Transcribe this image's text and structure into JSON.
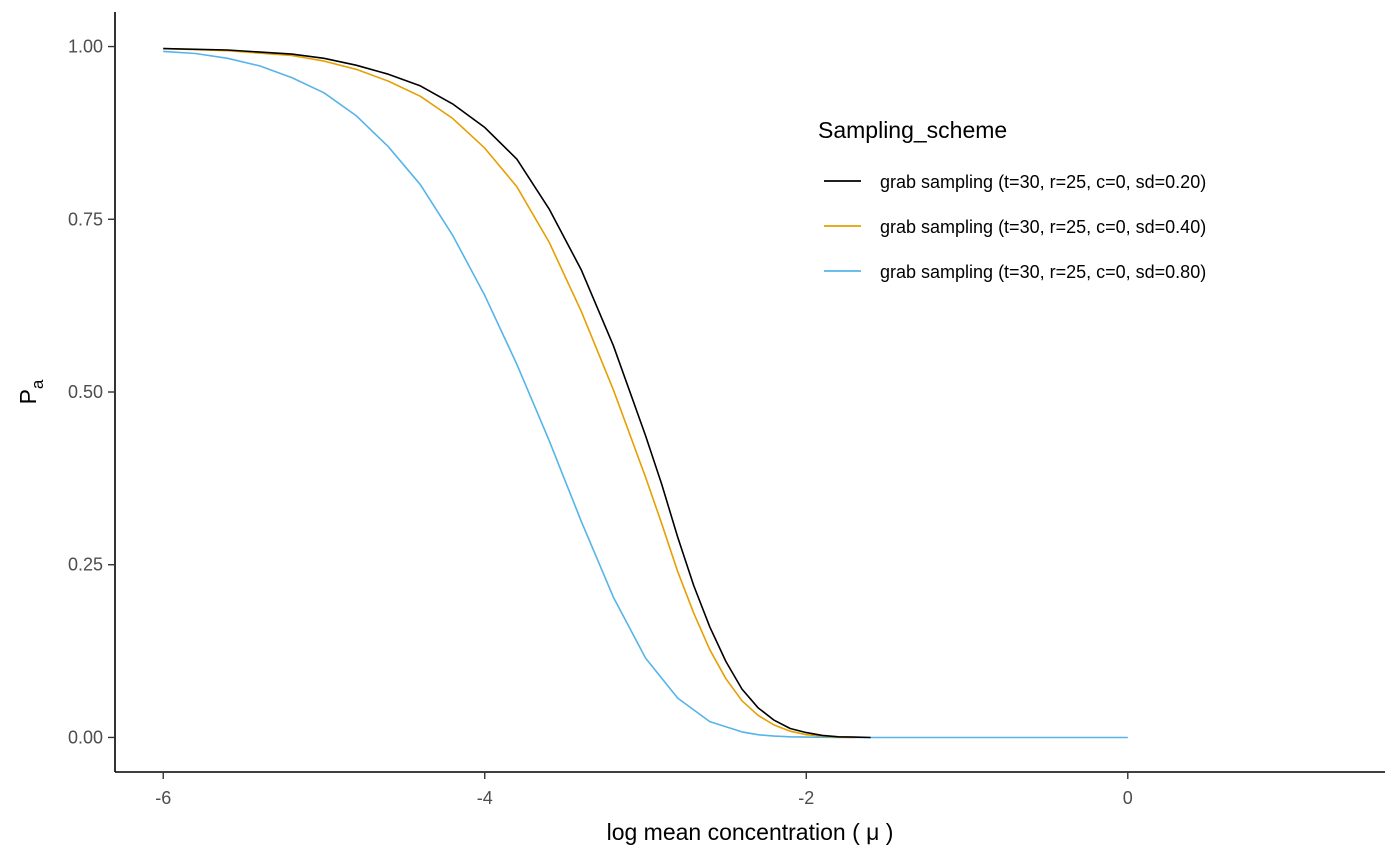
{
  "chart_data": {
    "type": "line",
    "title": "",
    "xlabel": "log mean concentration  ( μ )",
    "ylabel_main": "P",
    "ylabel_sub": "a",
    "xlim": [
      -6.3,
      1.6
    ],
    "ylim": [
      -0.05,
      1.05
    ],
    "x_ticks": [
      -6,
      -4,
      -2,
      0
    ],
    "x_tick_labels": [
      "-6",
      "-4",
      "-2",
      "0"
    ],
    "y_ticks": [
      0,
      0.25,
      0.5,
      0.75,
      1
    ],
    "y_tick_labels": [
      "0.00",
      "0.25",
      "0.50",
      "0.75",
      "1.00"
    ],
    "grid": false,
    "legend": {
      "title": "Sampling_scheme",
      "position": "top-right"
    },
    "series": [
      {
        "name": "grab sampling (t=30, r=25, c=0, sd=0.20)",
        "color": "#000000",
        "x": [
          -6.0,
          -5.6,
          -5.2,
          -5.0,
          -4.8,
          -4.6,
          -4.4,
          -4.2,
          -4.0,
          -3.8,
          -3.6,
          -3.4,
          -3.2,
          -3.0,
          -2.9,
          -2.8,
          -2.7,
          -2.6,
          -2.5,
          -2.4,
          -2.3,
          -2.2,
          -2.1,
          -2.0,
          -1.9,
          -1.8,
          -1.7,
          -1.6
        ],
        "y": [
          0.997,
          0.995,
          0.989,
          0.983,
          0.973,
          0.96,
          0.943,
          0.917,
          0.883,
          0.837,
          0.765,
          0.677,
          0.567,
          0.437,
          0.367,
          0.29,
          0.22,
          0.16,
          0.11,
          0.07,
          0.043,
          0.025,
          0.013,
          0.007,
          0.003,
          0.001,
          0.0005,
          0.0
        ]
      },
      {
        "name": "grab sampling (t=30, r=25, c=0, sd=0.40)",
        "color": "#E69F00",
        "x": [
          -6.0,
          -5.6,
          -5.2,
          -5.0,
          -4.8,
          -4.6,
          -4.4,
          -4.2,
          -4.0,
          -3.8,
          -3.6,
          -3.4,
          -3.2,
          -3.0,
          -2.9,
          -2.8,
          -2.7,
          -2.6,
          -2.5,
          -2.4,
          -2.3,
          -2.2,
          -2.1,
          -2.0,
          -1.9,
          -1.8,
          -1.7
        ],
        "y": [
          0.997,
          0.994,
          0.987,
          0.979,
          0.967,
          0.95,
          0.928,
          0.896,
          0.853,
          0.797,
          0.717,
          0.617,
          0.503,
          0.377,
          0.31,
          0.24,
          0.18,
          0.127,
          0.085,
          0.053,
          0.032,
          0.018,
          0.009,
          0.004,
          0.002,
          0.0005,
          0.0
        ]
      },
      {
        "name": "grab sampling (t=30, r=25, c=0, sd=0.80)",
        "color": "#56B4E9",
        "x": [
          -6.0,
          -5.8,
          -5.6,
          -5.4,
          -5.2,
          -5.0,
          -4.8,
          -4.6,
          -4.4,
          -4.2,
          -4.0,
          -3.8,
          -3.6,
          -3.4,
          -3.2,
          -3.0,
          -2.8,
          -2.6,
          -2.4,
          -2.3,
          -2.2,
          -2.1,
          -2.0,
          -1.8,
          -1.6,
          -1.2,
          -0.8,
          -0.4,
          0.0
        ],
        "y": [
          0.993,
          0.99,
          0.983,
          0.972,
          0.955,
          0.933,
          0.9,
          0.855,
          0.8,
          0.727,
          0.64,
          0.54,
          0.43,
          0.313,
          0.203,
          0.115,
          0.057,
          0.023,
          0.008,
          0.004,
          0.002,
          0.001,
          0.0005,
          0.0,
          0.0,
          0.0,
          0.0,
          0.0,
          0.0
        ]
      }
    ]
  }
}
